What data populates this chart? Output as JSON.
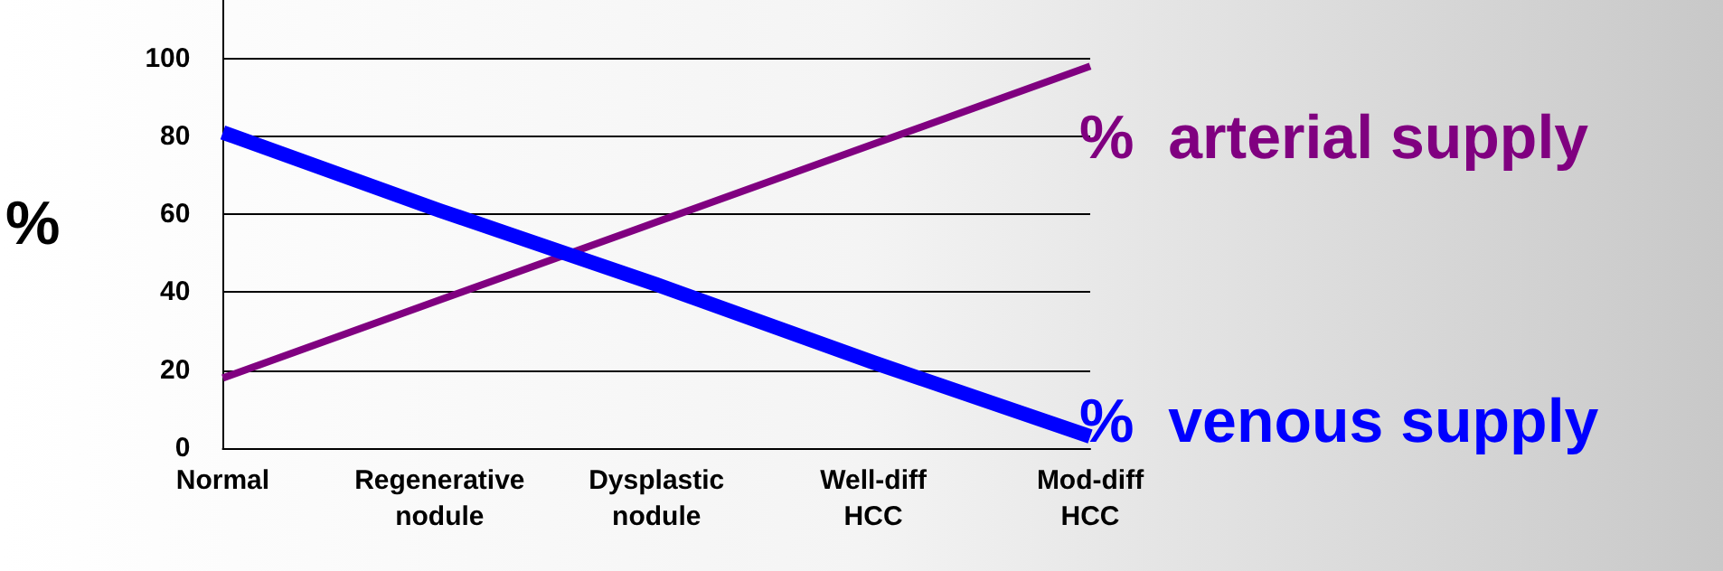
{
  "chart_data": {
    "type": "line",
    "ylabel": "%",
    "categories": [
      "Normal",
      "Regenerative\nnodule",
      "Dysplastic\nnodule",
      "Well-diff\nHCC",
      "Mod-diff\nHCC"
    ],
    "series": [
      {
        "name": "%  arterial supply",
        "color": "#800080",
        "values": [
          18,
          38,
          58,
          78,
          98
        ]
      },
      {
        "name": "%  venous supply",
        "color": "#0000ff",
        "values": [
          81,
          61,
          42,
          22,
          3
        ]
      }
    ],
    "ylim": [
      0,
      115
    ],
    "yticks": [
      0,
      20,
      40,
      60,
      80,
      100
    ],
    "grid": "y",
    "legend": false,
    "marker": "none",
    "line_style": "solid"
  }
}
